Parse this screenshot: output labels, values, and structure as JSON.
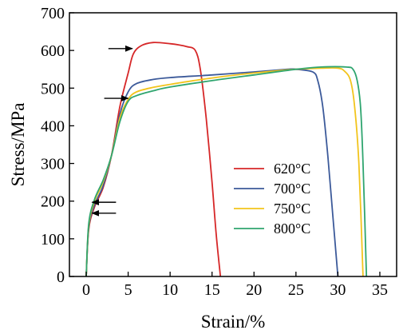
{
  "chart_data": {
    "type": "line",
    "xlabel": "Strain/%",
    "ylabel": "Stress/MPa",
    "xlim": [
      -2,
      37
    ],
    "ylim": [
      0,
      700
    ],
    "xticks": [
      0,
      5,
      10,
      15,
      20,
      25,
      30,
      35
    ],
    "yticks": [
      0,
      100,
      200,
      300,
      400,
      500,
      600,
      700
    ],
    "grid": false,
    "legend_position": "center-right",
    "series": [
      {
        "name": "620°C",
        "color": "#d62728",
        "points": [
          [
            0,
            0
          ],
          [
            0.3,
            125
          ],
          [
            1,
            185
          ],
          [
            2,
            235
          ],
          [
            3,
            320
          ],
          [
            4,
            450
          ],
          [
            5,
            540
          ],
          [
            5.6,
            590
          ],
          [
            6.5,
            612
          ],
          [
            8,
            621
          ],
          [
            10,
            618
          ],
          [
            11,
            615
          ],
          [
            12,
            610
          ],
          [
            13,
            600
          ],
          [
            13.6,
            550
          ],
          [
            14.3,
            420
          ],
          [
            15,
            250
          ],
          [
            15.5,
            110
          ],
          [
            16,
            0
          ]
        ]
      },
      {
        "name": "700°C",
        "color": "#3c5a9a",
        "points": [
          [
            0,
            0
          ],
          [
            0.3,
            130
          ],
          [
            1,
            190
          ],
          [
            2,
            240
          ],
          [
            3,
            320
          ],
          [
            4,
            430
          ],
          [
            5,
            490
          ],
          [
            6,
            512
          ],
          [
            8,
            523
          ],
          [
            10,
            528
          ],
          [
            15,
            535
          ],
          [
            20,
            543
          ],
          [
            24,
            550
          ],
          [
            25,
            550
          ],
          [
            27,
            543
          ],
          [
            27.6,
            520
          ],
          [
            28.2,
            450
          ],
          [
            28.8,
            320
          ],
          [
            29.4,
            160
          ],
          [
            30,
            0
          ]
        ]
      },
      {
        "name": "750°C",
        "color": "#f2c41c",
        "points": [
          [
            0,
            0
          ],
          [
            0.3,
            135
          ],
          [
            1,
            200
          ],
          [
            2,
            250
          ],
          [
            3,
            320
          ],
          [
            4,
            420
          ],
          [
            5,
            470
          ],
          [
            6,
            490
          ],
          [
            8,
            502
          ],
          [
            10,
            510
          ],
          [
            15,
            527
          ],
          [
            20,
            540
          ],
          [
            25,
            550
          ],
          [
            28,
            553
          ],
          [
            30,
            553
          ],
          [
            30.8,
            545
          ],
          [
            31.5,
            520
          ],
          [
            32,
            450
          ],
          [
            32.5,
            300
          ],
          [
            33,
            0
          ]
        ]
      },
      {
        "name": "800°C",
        "color": "#2fa56f",
        "points": [
          [
            0,
            0
          ],
          [
            0.3,
            140
          ],
          [
            1,
            205
          ],
          [
            2,
            255
          ],
          [
            3,
            320
          ],
          [
            4,
            410
          ],
          [
            5,
            465
          ],
          [
            6,
            480
          ],
          [
            8,
            493
          ],
          [
            10,
            503
          ],
          [
            15,
            520
          ],
          [
            20,
            535
          ],
          [
            25,
            550
          ],
          [
            28,
            556
          ],
          [
            31,
            556
          ],
          [
            31.8,
            550
          ],
          [
            32.3,
            520
          ],
          [
            32.7,
            450
          ],
          [
            33,
            300
          ],
          [
            33.4,
            0
          ]
        ]
      }
    ],
    "annotations": [
      {
        "type": "arrow",
        "direction": "right",
        "at": [
          5.5,
          605
        ]
      },
      {
        "type": "arrow",
        "direction": "right",
        "at": [
          5,
          473
        ]
      },
      {
        "type": "arrow",
        "direction": "left",
        "at": [
          0.7,
          197
        ]
      },
      {
        "type": "arrow",
        "direction": "left",
        "at": [
          0.7,
          168
        ]
      }
    ]
  }
}
